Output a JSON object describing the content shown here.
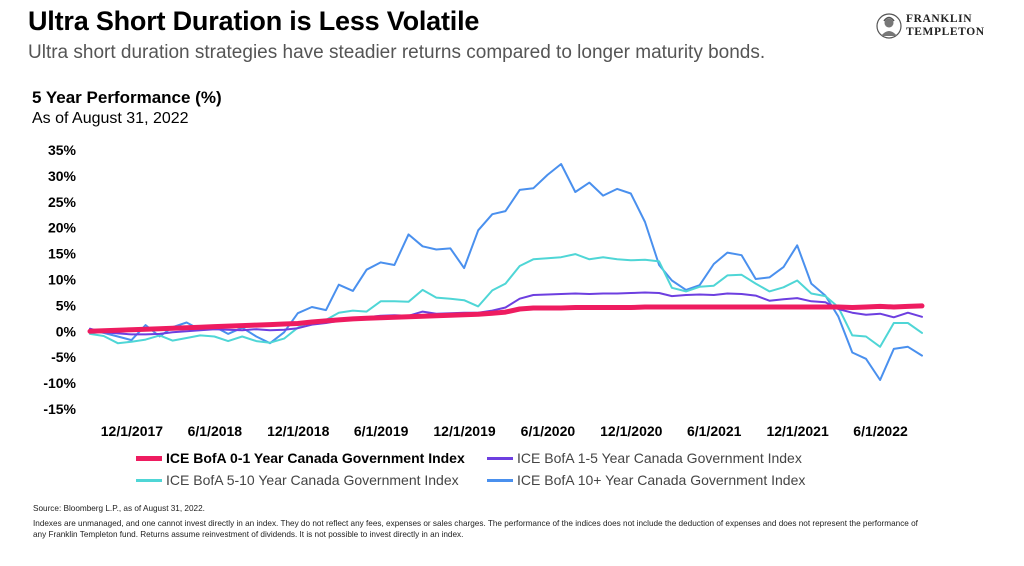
{
  "header": {
    "title": "Ultra Short Duration is Less Volatile",
    "subtitle": "Ultra short duration strategies have steadier returns compared to longer maturity bonds.",
    "logo_line1": "FRANKLIN",
    "logo_line2": "TEMPLETON"
  },
  "chart_header": {
    "title": "5 Year Performance (%)",
    "subtitle": "As of August 31, 2022"
  },
  "footer": {
    "source": "Source: Bloomberg L.P., as of August 31, 2022.",
    "disclaimer_line1": "Indexes are unmanaged, and one cannot invest directly in an index. They do not reflect any fees, expenses or sales charges. The performance of the indices does not include the deduction of expenses and does not represent the performance of",
    "disclaimer_line2": "any Franklin Templeton fund. Returns assume reinvestment of dividends. It is not possible to invest directly in an index."
  },
  "chart_data": {
    "type": "line",
    "grid": false,
    "legend_position": "bottom",
    "ylim": [
      -15,
      35
    ],
    "y_ticks": [
      -15,
      -10,
      -5,
      0,
      5,
      10,
      15,
      20,
      25,
      30,
      35
    ],
    "y_tick_labels": [
      "-15%",
      "-10%",
      "-5%",
      "0%",
      "5%",
      "10%",
      "15%",
      "20%",
      "25%",
      "30%",
      "35%"
    ],
    "x_ticks": [
      "2017-12-01",
      "2018-06-01",
      "2018-12-01",
      "2019-06-01",
      "2019-12-01",
      "2020-06-01",
      "2020-12-01",
      "2021-06-01",
      "2021-12-01",
      "2022-06-01"
    ],
    "x_tick_labels": [
      "12/1/2017",
      "6/1/2018",
      "12/1/2018",
      "6/1/2019",
      "12/1/2019",
      "6/1/2020",
      "12/1/2020",
      "6/1/2021",
      "12/1/2021",
      "6/1/2022"
    ],
    "x": [
      "2017-08-31",
      "2017-09-30",
      "2017-10-31",
      "2017-11-30",
      "2017-12-31",
      "2018-01-31",
      "2018-02-28",
      "2018-03-31",
      "2018-04-30",
      "2018-05-31",
      "2018-06-30",
      "2018-07-31",
      "2018-08-31",
      "2018-09-30",
      "2018-10-31",
      "2018-11-30",
      "2018-12-31",
      "2019-01-31",
      "2019-02-28",
      "2019-03-31",
      "2019-04-30",
      "2019-05-31",
      "2019-06-30",
      "2019-07-31",
      "2019-08-31",
      "2019-09-30",
      "2019-10-31",
      "2019-11-30",
      "2019-12-31",
      "2020-01-31",
      "2020-02-29",
      "2020-03-31",
      "2020-04-30",
      "2020-05-31",
      "2020-06-30",
      "2020-07-31",
      "2020-08-31",
      "2020-09-30",
      "2020-10-31",
      "2020-11-30",
      "2020-12-31",
      "2021-01-31",
      "2021-02-28",
      "2021-03-31",
      "2021-04-30",
      "2021-05-31",
      "2021-06-30",
      "2021-07-31",
      "2021-08-31",
      "2021-09-30",
      "2021-10-31",
      "2021-11-30",
      "2021-12-31",
      "2022-01-31",
      "2022-02-28",
      "2022-03-31",
      "2022-04-30",
      "2022-05-31",
      "2022-06-30",
      "2022-07-31",
      "2022-08-31"
    ],
    "series": [
      {
        "name": "ICE BofA 0-1 Year Canada Government Index",
        "color": "#ee1c60",
        "values": [
          0,
          0.1,
          0.2,
          0.3,
          0.4,
          0.5,
          0.6,
          0.7,
          0.8,
          0.9,
          1.0,
          1.1,
          1.2,
          1.3,
          1.4,
          1.5,
          1.8,
          2.0,
          2.2,
          2.4,
          2.5,
          2.6,
          2.7,
          2.8,
          2.9,
          3.0,
          3.1,
          3.2,
          3.3,
          3.5,
          3.7,
          4.3,
          4.5,
          4.5,
          4.5,
          4.6,
          4.6,
          4.6,
          4.6,
          4.6,
          4.7,
          4.7,
          4.7,
          4.7,
          4.7,
          4.7,
          4.7,
          4.7,
          4.7,
          4.7,
          4.7,
          4.7,
          4.7,
          4.7,
          4.7,
          4.6,
          4.7,
          4.8,
          4.7,
          4.8,
          4.9
        ]
      },
      {
        "name": "ICE BofA 1-5 Year Canada Government Index",
        "color": "#6d3fe0",
        "values": [
          0.5,
          -0.2,
          -0.4,
          -0.6,
          -0.6,
          -0.5,
          -0.2,
          0.0,
          0.2,
          0.4,
          0.3,
          0.2,
          0.4,
          0.2,
          0.3,
          0.6,
          1.3,
          1.6,
          2.0,
          2.5,
          2.7,
          3.0,
          3.1,
          3.0,
          3.8,
          3.4,
          3.5,
          3.6,
          3.6,
          4.0,
          4.6,
          6.3,
          7.0,
          7.1,
          7.2,
          7.3,
          7.2,
          7.3,
          7.3,
          7.4,
          7.5,
          7.4,
          6.8,
          7.0,
          7.1,
          7.0,
          7.3,
          7.2,
          6.9,
          5.9,
          6.2,
          6.4,
          5.8,
          5.6,
          4.3,
          3.6,
          3.2,
          3.4,
          2.7,
          3.6,
          2.8
        ]
      },
      {
        "name": "ICE BofA 5-10 Year Canada Government Index",
        "color": "#4fd6d6",
        "values": [
          -0.5,
          -0.9,
          -2.3,
          -2.0,
          -1.6,
          -0.8,
          -1.8,
          -1.3,
          -0.8,
          -1.0,
          -1.9,
          -1.0,
          -1.9,
          -2.2,
          -1.4,
          0.7,
          2.0,
          2.2,
          3.6,
          4.0,
          3.8,
          5.8,
          5.8,
          5.7,
          8.0,
          6.5,
          6.3,
          6.0,
          4.8,
          7.9,
          9.2,
          12.6,
          13.9,
          14.1,
          14.3,
          14.9,
          13.9,
          14.3,
          13.9,
          13.7,
          13.8,
          13.5,
          8.4,
          7.7,
          8.6,
          8.8,
          10.8,
          10.9,
          9.2,
          7.7,
          8.5,
          9.8,
          7.3,
          6.8,
          4.7,
          -0.8,
          -1.0,
          -3.0,
          1.6,
          1.6,
          -0.3
        ]
      },
      {
        "name": "ICE BofA 10+ Year Canada Government Index",
        "color": "#4a90ee",
        "values": [
          0.2,
          -0.3,
          -1.0,
          -1.7,
          1.2,
          -1.0,
          0.8,
          1.7,
          0.3,
          0.9,
          -0.5,
          0.7,
          -1.0,
          -2.3,
          -0.2,
          3.5,
          4.7,
          4.1,
          9.0,
          7.8,
          11.9,
          13.3,
          12.8,
          18.7,
          16.4,
          15.8,
          16.0,
          12.2,
          19.5,
          22.6,
          23.2,
          27.3,
          27.6,
          30.2,
          32.3,
          26.9,
          28.7,
          26.2,
          27.5,
          26.6,
          21.1,
          12.8,
          9.8,
          8.0,
          8.9,
          13.0,
          15.2,
          14.7,
          10.1,
          10.4,
          12.4,
          16.6,
          9.2,
          6.9,
          2.9,
          -4.1,
          -5.3,
          -9.4,
          -3.4,
          -3.0,
          -4.7
        ]
      }
    ]
  }
}
